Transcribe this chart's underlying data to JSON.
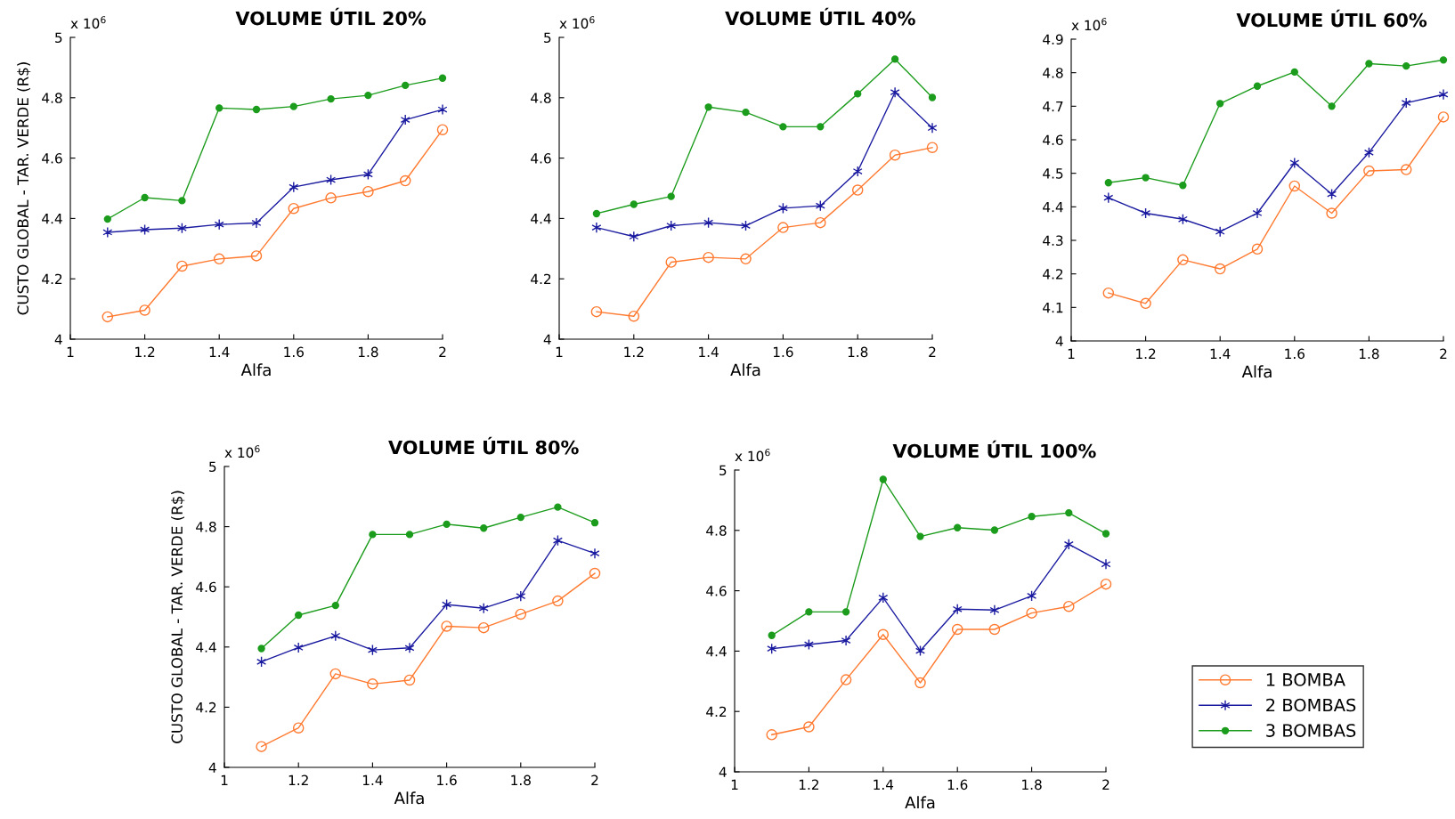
{
  "chart_data": [
    {
      "type": "line",
      "title": "VOLUME ÚTIL 20%",
      "xlabel": "Alfa",
      "ylabel": "CUSTO GLOBAL - TAR. VERDE (R$)",
      "annotations": [
        "x 10$^{6}$"
      ],
      "x": [
        1.1,
        1.2,
        1.3,
        1.4,
        1.5,
        1.6,
        1.7,
        1.8,
        1.9,
        2.0
      ],
      "xlim": [
        1,
        2
      ],
      "xticks": [
        1,
        1.2,
        1.4,
        1.6,
        1.8,
        2
      ],
      "ylim": [
        4,
        5
      ],
      "yticks": [
        4,
        4.2,
        4.4,
        4.6,
        4.8,
        5
      ],
      "grid": false,
      "legend": "bottom right",
      "line_style": "solid",
      "series": [
        {
          "name": "1 BOMBA",
          "color": "#ff7a30",
          "marker": "circle",
          "values": [
            4.074,
            4.096,
            4.242,
            4.266,
            4.276,
            4.433,
            4.468,
            4.489,
            4.525,
            4.694
          ]
        },
        {
          "name": "2 BOMBAS",
          "color": "#1a1aa0",
          "marker": "cross",
          "values": [
            4.354,
            4.363,
            4.368,
            4.38,
            4.385,
            4.504,
            4.528,
            4.546,
            4.727,
            4.761
          ]
        },
        {
          "name": "3 BOMBAS",
          "color": "#1c9c1c",
          "marker": "circle",
          "values": [
            4.398,
            4.469,
            4.459,
            4.766,
            4.761,
            4.771,
            4.796,
            4.808,
            4.841,
            4.865
          ]
        }
      ]
    },
    {
      "type": "line",
      "title": "VOLUME ÚTIL 40%",
      "xlabel": "Alfa",
      "annotations": [
        "x 10$^{6}$"
      ],
      "x": [
        1.1,
        1.2,
        1.3,
        1.4,
        1.5,
        1.6,
        1.7,
        1.8,
        1.9,
        2.0
      ],
      "xlim": [
        1,
        2
      ],
      "xticks": [
        1,
        1.2,
        1.4,
        1.6,
        1.8,
        2
      ],
      "ylim": [
        4,
        5
      ],
      "yticks": [
        4,
        4.2,
        4.4,
        4.6,
        4.8,
        5
      ],
      "grid": false,
      "line_style": "solid",
      "series": [
        {
          "color": "#ff7a30",
          "marker": "circle",
          "values": [
            4.091,
            4.076,
            4.255,
            4.271,
            4.266,
            4.37,
            4.386,
            4.494,
            4.61,
            4.635
          ]
        },
        {
          "color": "#1a1aa0",
          "marker": "cross",
          "values": [
            4.37,
            4.34,
            4.376,
            4.386,
            4.376,
            4.434,
            4.442,
            4.556,
            4.818,
            4.7
          ]
        },
        {
          "color": "#1c9c1c",
          "marker": "circle",
          "values": [
            4.416,
            4.447,
            4.473,
            4.769,
            4.752,
            4.704,
            4.704,
            4.813,
            4.928,
            4.801
          ]
        }
      ]
    },
    {
      "type": "line",
      "title": "VOLUME ÚTIL 60%",
      "xlabel": "Alfa",
      "annotations": [
        "x 10$^{6}$"
      ],
      "x": [
        1.1,
        1.2,
        1.3,
        1.4,
        1.5,
        1.6,
        1.7,
        1.8,
        1.9,
        2.0
      ],
      "xlim": [
        1,
        2
      ],
      "xticks": [
        1,
        1.2,
        1.4,
        1.6,
        1.8,
        2
      ],
      "ylim": [
        4,
        4.9
      ],
      "yticks": [
        4,
        4.1,
        4.2,
        4.3,
        4.4,
        4.5,
        4.6,
        4.7,
        4.8,
        4.9
      ],
      "grid": false,
      "line_style": "solid",
      "series": [
        {
          "color": "#ff7a30",
          "marker": "circle",
          "values": [
            4.143,
            4.112,
            4.242,
            4.215,
            4.274,
            4.462,
            4.381,
            4.507,
            4.511,
            4.668
          ]
        },
        {
          "color": "#1a1aa0",
          "marker": "cross",
          "values": [
            4.427,
            4.381,
            4.363,
            4.326,
            4.381,
            4.531,
            4.438,
            4.562,
            4.71,
            4.735
          ]
        },
        {
          "color": "#1c9c1c",
          "marker": "circle",
          "values": [
            4.472,
            4.487,
            4.464,
            4.708,
            4.76,
            4.802,
            4.7,
            4.827,
            4.82,
            4.838
          ]
        }
      ]
    },
    {
      "type": "line",
      "title": "VOLUME ÚTIL 80%",
      "xlabel": "Alfa",
      "ylabel": "CUSTO GLOBAL - TAR. VERDE (R$)",
      "annotations": [
        "x 10$^{6}$"
      ],
      "x": [
        1.1,
        1.2,
        1.3,
        1.4,
        1.5,
        1.6,
        1.7,
        1.8,
        1.9,
        2.0
      ],
      "xlim": [
        1,
        2
      ],
      "xticks": [
        1,
        1.2,
        1.4,
        1.6,
        1.8,
        2
      ],
      "ylim": [
        4,
        5
      ],
      "yticks": [
        4,
        4.2,
        4.4,
        4.6,
        4.8,
        5
      ],
      "grid": false,
      "line_style": "solid",
      "series": [
        {
          "color": "#ff7a30",
          "marker": "circle",
          "values": [
            4.069,
            4.131,
            4.311,
            4.277,
            4.29,
            4.469,
            4.464,
            4.509,
            4.553,
            4.645
          ]
        },
        {
          "color": "#1a1aa0",
          "marker": "cross",
          "values": [
            4.351,
            4.398,
            4.437,
            4.39,
            4.397,
            4.541,
            4.529,
            4.569,
            4.754,
            4.711
          ]
        },
        {
          "color": "#1c9c1c",
          "marker": "circle",
          "values": [
            4.395,
            4.506,
            4.538,
            4.774,
            4.774,
            4.808,
            4.795,
            4.831,
            4.865,
            4.813
          ]
        }
      ]
    },
    {
      "type": "line",
      "title": "VOLUME ÚTIL 100%",
      "xlabel": "Alfa",
      "annotations": [
        "x 10$^{6}$"
      ],
      "x": [
        1.1,
        1.2,
        1.3,
        1.4,
        1.5,
        1.6,
        1.7,
        1.8,
        1.9,
        2.0
      ],
      "xlim": [
        1,
        2
      ],
      "xticks": [
        1,
        1.2,
        1.4,
        1.6,
        1.8,
        2
      ],
      "ylim": [
        4,
        5
      ],
      "yticks": [
        4,
        4.2,
        4.4,
        4.6,
        4.8,
        5
      ],
      "grid": false,
      "line_style": "solid",
      "series": [
        {
          "color": "#ff7a30",
          "marker": "circle",
          "values": [
            4.123,
            4.149,
            4.305,
            4.455,
            4.295,
            4.472,
            4.472,
            4.526,
            4.548,
            4.622
          ]
        },
        {
          "color": "#1a1aa0",
          "marker": "cross",
          "values": [
            4.408,
            4.422,
            4.435,
            4.577,
            4.401,
            4.539,
            4.536,
            4.583,
            4.754,
            4.688
          ]
        },
        {
          "color": "#1c9c1c",
          "marker": "circle",
          "values": [
            4.452,
            4.53,
            4.53,
            4.969,
            4.78,
            4.809,
            4.801,
            4.846,
            4.858,
            4.789
          ]
        }
      ]
    }
  ]
}
